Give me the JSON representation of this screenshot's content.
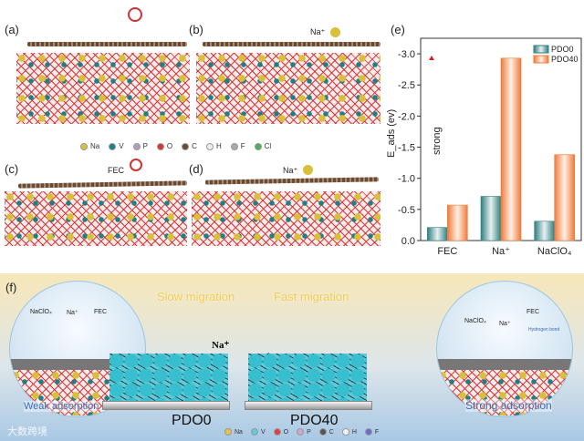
{
  "panels": {
    "a": {
      "label": "(a)"
    },
    "b": {
      "label": "(b)",
      "species": "Na⁺"
    },
    "c": {
      "label": "(c)",
      "species": "FEC"
    },
    "d": {
      "label": "(d)",
      "species": "Na⁺"
    },
    "e": {
      "label": "(e)"
    },
    "f": {
      "label": "(f)",
      "slow": "Slow migration",
      "fast": "Fast migration",
      "left_sample": "PDO0",
      "right_sample": "PDO40",
      "weak": "Weak adsorption",
      "strong": "Strong adsorption",
      "bubble_left": [
        "NaClO₄",
        "Na⁺",
        "FEC"
      ],
      "bubble_right": [
        "NaClO₄",
        "Na⁺",
        "FEC",
        "Hydrogen bond"
      ],
      "na_label_left": "Na⁺",
      "na_label_right": "Na⁺",
      "watermark": "大数跨境"
    }
  },
  "atom_legend_top": [
    {
      "sym": "Na",
      "color": "#d9bf3a"
    },
    {
      "sym": "V",
      "color": "#1f7f86"
    },
    {
      "sym": "P",
      "color": "#b79ac0"
    },
    {
      "sym": "O",
      "color": "#d33"
    },
    {
      "sym": "C",
      "color": "#6b4a35"
    },
    {
      "sym": "H",
      "color": "#eee"
    },
    {
      "sym": "F",
      "color": "#aaa"
    },
    {
      "sym": "Cl",
      "color": "#4caf50"
    }
  ],
  "atom_legend_bottom": [
    {
      "sym": "Na",
      "color": "#e8c24a"
    },
    {
      "sym": "V",
      "color": "#5fcbd6"
    },
    {
      "sym": "O",
      "color": "#e04040"
    },
    {
      "sym": "P",
      "color": "#c8a8d0"
    },
    {
      "sym": "C",
      "color": "#555"
    },
    {
      "sym": "H",
      "color": "#f4f4f4"
    },
    {
      "sym": "F",
      "color": "#6a6ad0"
    }
  ],
  "chart_data": {
    "type": "bar",
    "categories": [
      "FEC",
      "Na⁺",
      "NaClO₄"
    ],
    "series": [
      {
        "name": "PDO0",
        "values": [
          -0.21,
          -0.71,
          -0.31
        ],
        "color": "#2f7f80"
      },
      {
        "name": "PDO40",
        "values": [
          -0.57,
          -2.93,
          -1.38
        ],
        "color": "#ef7a3a"
      }
    ],
    "ylabel": "E_ads (ev)",
    "ylim": [
      0,
      -3.25
    ],
    "yticks": [
      "0.0",
      "-0.5",
      "-1.0",
      "-1.5",
      "-2.0",
      "-2.5",
      "-3.0"
    ],
    "annotation": "strong",
    "legend": "top-right"
  }
}
